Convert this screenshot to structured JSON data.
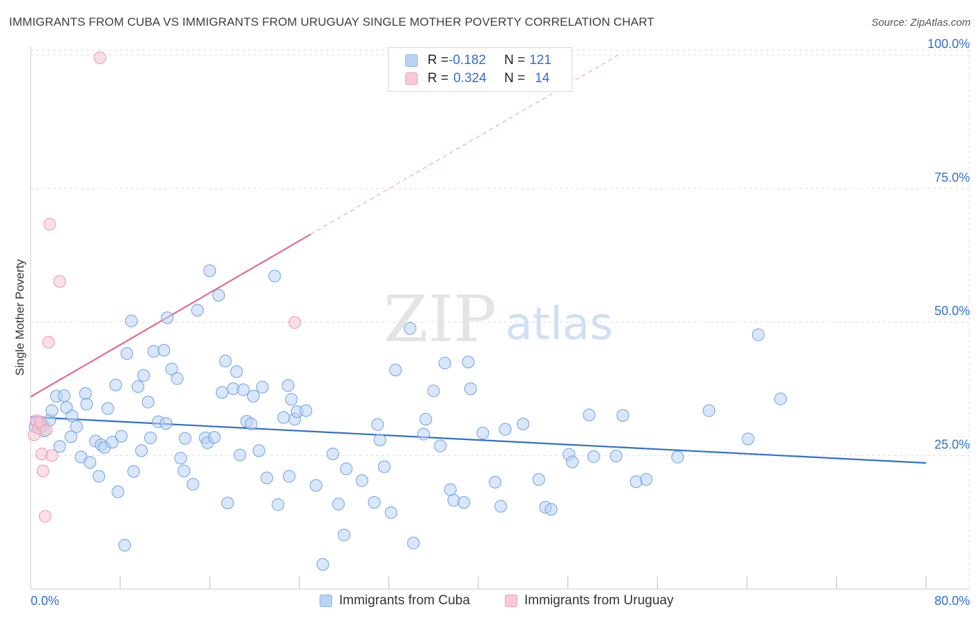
{
  "header": {
    "title": "IMMIGRANTS FROM CUBA VS IMMIGRANTS FROM URUGUAY SINGLE MOTHER POVERTY CORRELATION CHART",
    "source": "Source: ZipAtlas.com"
  },
  "legend": {
    "rows": [
      {
        "r_label": "R = ",
        "r_value": "-0.182",
        "n_label": "N = ",
        "n_value": "121"
      },
      {
        "r_label": "R = ",
        "r_value": "0.324",
        "n_label": "N = ",
        "n_value": "14"
      }
    ]
  },
  "bottom_legend": {
    "items": [
      {
        "label": "Immigrants from Cuba"
      },
      {
        "label": "Immigrants from Uruguay"
      }
    ]
  },
  "watermark": {
    "zip": "ZIP",
    "atlas": "atlas"
  },
  "colors": {
    "cuba_fill": "#b9d3f5",
    "cuba_stroke": "#6f9fe0",
    "cuba_line": "#2f6fd0",
    "uruguay_fill": "#f9c9d6",
    "uruguay_stroke": "#e996b0",
    "uruguay_line": "#e06a92",
    "tick_label": "#2f6fd0",
    "grid": "#dddddd"
  },
  "chart_data": {
    "type": "scatter",
    "title": "IMMIGRANTS FROM CUBA VS IMMIGRANTS FROM URUGUAY SINGLE MOTHER POVERTY CORRELATION CHART",
    "xlabel": "",
    "ylabel": "Single Mother Poverty",
    "xlim": [
      0,
      80
    ],
    "ylim": [
      0,
      100
    ],
    "x_tick_labels": [
      "0.0%",
      "80.0%"
    ],
    "y_ticks": [
      25,
      50,
      75,
      100
    ],
    "y_tick_labels": [
      "25.0%",
      "50.0%",
      "75.0%",
      "100.0%"
    ],
    "grid": true,
    "legend_position": "top-center",
    "series": [
      {
        "name": "Immigrants from Cuba",
        "r": -0.182,
        "n": 121,
        "trend": {
          "x0": 0,
          "y0": 32.2,
          "x1": 80,
          "y1": 23.6
        },
        "points": [
          [
            0.4,
            30.4
          ],
          [
            0.6,
            31.2
          ],
          [
            0.9,
            30.8
          ],
          [
            1.2,
            29.6
          ],
          [
            1.1,
            30.6
          ],
          [
            1.7,
            31.6
          ],
          [
            1.9,
            33.4
          ],
          [
            2.3,
            36.1
          ],
          [
            2.6,
            26.7
          ],
          [
            3.0,
            36.2
          ],
          [
            3.2,
            34.0
          ],
          [
            3.6,
            28.5
          ],
          [
            3.7,
            32.4
          ],
          [
            4.1,
            30.4
          ],
          [
            4.5,
            24.7
          ],
          [
            4.9,
            36.6
          ],
          [
            5.0,
            34.6
          ],
          [
            5.3,
            23.7
          ],
          [
            5.8,
            27.7
          ],
          [
            6.1,
            21.1
          ],
          [
            6.3,
            27.0
          ],
          [
            6.6,
            26.5
          ],
          [
            6.9,
            33.8
          ],
          [
            7.3,
            27.5
          ],
          [
            7.6,
            38.2
          ],
          [
            7.8,
            18.2
          ],
          [
            8.1,
            28.6
          ],
          [
            8.4,
            8.2
          ],
          [
            8.6,
            44.1
          ],
          [
            9.0,
            50.2
          ],
          [
            9.2,
            22.0
          ],
          [
            9.6,
            37.9
          ],
          [
            9.9,
            25.9
          ],
          [
            10.1,
            40.0
          ],
          [
            10.5,
            35.0
          ],
          [
            10.7,
            28.3
          ],
          [
            11.0,
            44.5
          ],
          [
            11.4,
            31.3
          ],
          [
            11.9,
            44.7
          ],
          [
            12.1,
            31.0
          ],
          [
            12.2,
            50.8
          ],
          [
            12.6,
            41.2
          ],
          [
            13.1,
            39.4
          ],
          [
            13.4,
            24.5
          ],
          [
            13.7,
            22.1
          ],
          [
            13.8,
            28.2
          ],
          [
            14.5,
            19.6
          ],
          [
            14.9,
            52.2
          ],
          [
            15.6,
            28.3
          ],
          [
            15.8,
            27.4
          ],
          [
            16.0,
            59.6
          ],
          [
            16.4,
            28.4
          ],
          [
            16.8,
            55.0
          ],
          [
            17.1,
            36.8
          ],
          [
            17.4,
            42.7
          ],
          [
            17.6,
            16.1
          ],
          [
            18.1,
            37.5
          ],
          [
            18.4,
            40.7
          ],
          [
            18.7,
            25.1
          ],
          [
            19.0,
            37.3
          ],
          [
            19.3,
            31.4
          ],
          [
            19.7,
            30.9
          ],
          [
            19.9,
            36.1
          ],
          [
            20.4,
            25.9
          ],
          [
            20.7,
            37.8
          ],
          [
            21.1,
            20.8
          ],
          [
            21.8,
            58.6
          ],
          [
            22.1,
            15.8
          ],
          [
            22.6,
            32.1
          ],
          [
            23.0,
            38.1
          ],
          [
            23.1,
            21.1
          ],
          [
            23.3,
            35.5
          ],
          [
            23.6,
            31.8
          ],
          [
            23.8,
            33.2
          ],
          [
            24.6,
            33.4
          ],
          [
            25.5,
            19.4
          ],
          [
            26.1,
            4.6
          ],
          [
            27.0,
            25.3
          ],
          [
            27.5,
            15.9
          ],
          [
            28.0,
            10.1
          ],
          [
            28.2,
            22.5
          ],
          [
            29.6,
            20.3
          ],
          [
            30.7,
            16.2
          ],
          [
            31.0,
            30.8
          ],
          [
            31.2,
            27.9
          ],
          [
            31.6,
            22.9
          ],
          [
            32.2,
            14.3
          ],
          [
            32.6,
            41.0
          ],
          [
            33.9,
            48.8
          ],
          [
            34.2,
            8.6
          ],
          [
            35.1,
            29.0
          ],
          [
            35.3,
            31.8
          ],
          [
            36.0,
            37.1
          ],
          [
            36.6,
            26.8
          ],
          [
            37.0,
            42.3
          ],
          [
            37.5,
            18.6
          ],
          [
            37.8,
            16.6
          ],
          [
            38.7,
            16.2
          ],
          [
            39.1,
            42.5
          ],
          [
            39.3,
            37.5
          ],
          [
            40.4,
            29.2
          ],
          [
            41.5,
            20.0
          ],
          [
            42.0,
            15.5
          ],
          [
            42.4,
            29.9
          ],
          [
            44.0,
            30.9
          ],
          [
            45.4,
            20.5
          ],
          [
            46.0,
            15.3
          ],
          [
            46.5,
            14.9
          ],
          [
            48.1,
            25.2
          ],
          [
            48.4,
            23.8
          ],
          [
            49.9,
            32.6
          ],
          [
            50.3,
            24.8
          ],
          [
            52.3,
            24.9
          ],
          [
            52.9,
            32.5
          ],
          [
            54.1,
            20.1
          ],
          [
            55.0,
            20.5
          ],
          [
            57.8,
            24.7
          ],
          [
            60.6,
            33.4
          ],
          [
            64.1,
            28.1
          ],
          [
            65.0,
            47.6
          ],
          [
            67.0,
            35.6
          ]
        ]
      },
      {
        "name": "Immigrants from Uruguay",
        "r": 0.324,
        "n": 14,
        "trend": {
          "x0": 0,
          "y0": 36.0,
          "x1": 25,
          "y1": 66.4
        },
        "trend_extension": {
          "x0": 25,
          "y0": 66.4,
          "x1": 52.5,
          "y1": 100.0
        },
        "points": [
          [
            0.3,
            28.9
          ],
          [
            0.5,
            31.5
          ],
          [
            0.7,
            30.1
          ],
          [
            0.9,
            31.3
          ],
          [
            1.0,
            25.3
          ],
          [
            1.1,
            22.1
          ],
          [
            1.3,
            13.6
          ],
          [
            1.4,
            29.8
          ],
          [
            1.6,
            46.2
          ],
          [
            1.7,
            68.3
          ],
          [
            1.9,
            25.0
          ],
          [
            2.6,
            57.6
          ],
          [
            6.2,
            99.5
          ],
          [
            23.6,
            49.9
          ]
        ]
      }
    ]
  }
}
